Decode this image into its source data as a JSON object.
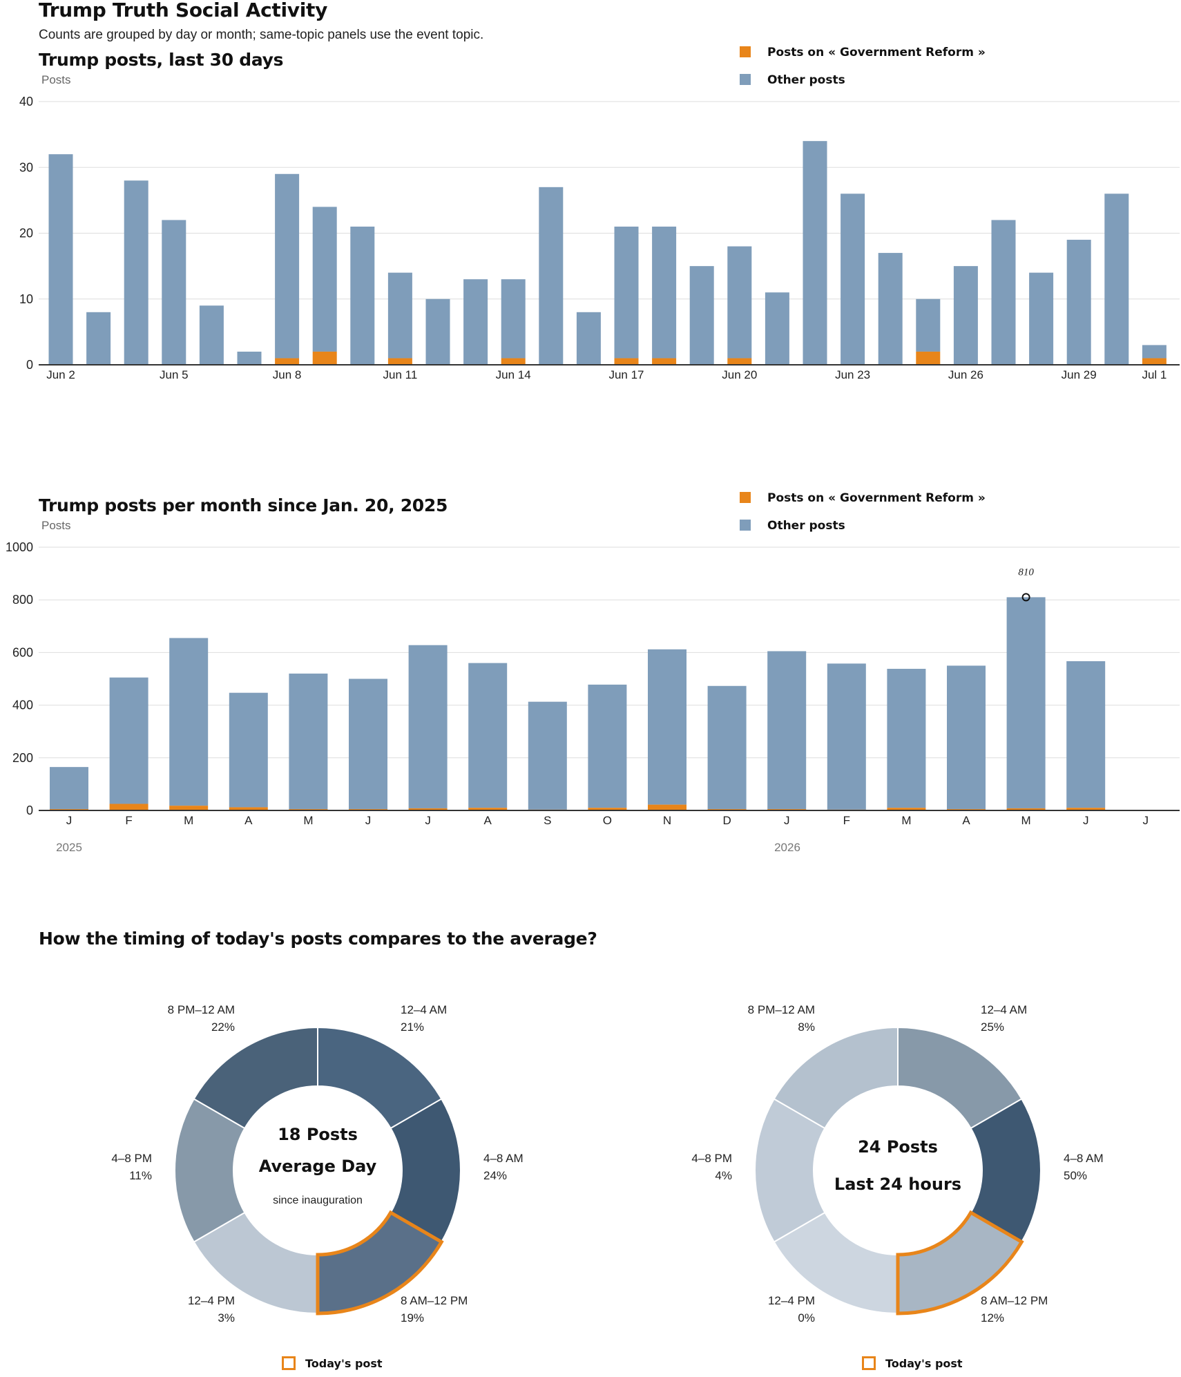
{
  "page": {
    "title": "Trump Truth Social Activity",
    "subtitle": "Counts are grouped by day or month; same-topic panels use the event topic."
  },
  "colors": {
    "topic": "#E8851A",
    "other": "#7F9DBA",
    "axis": "#333333",
    "grid": "#DDDDDD"
  },
  "legend": {
    "topic_label": "Posts on « Government Reform »",
    "other_label": "Other posts"
  },
  "chart_data": [
    {
      "type": "bar",
      "stacked": true,
      "title": "Trump posts, last 30 days",
      "ylabel": "Posts",
      "ylim": [
        0,
        40
      ],
      "yticks": [
        0,
        10,
        20,
        30,
        40
      ],
      "categories": [
        "Jun 2",
        "Jun 3",
        "Jun 4",
        "Jun 5",
        "Jun 6",
        "Jun 7",
        "Jun 8",
        "Jun 9",
        "Jun 10",
        "Jun 11",
        "Jun 12",
        "Jun 13",
        "Jun 14",
        "Jun 15",
        "Jun 16",
        "Jun 17",
        "Jun 18",
        "Jun 19",
        "Jun 20",
        "Jun 21",
        "Jun 22",
        "Jun 23",
        "Jun 24",
        "Jun 25",
        "Jun 26",
        "Jun 27",
        "Jun 28",
        "Jun 29",
        "Jun 30",
        "Jul 1"
      ],
      "tick_labels": [
        "Jun 2",
        "Jun 5",
        "Jun 8",
        "Jun 11",
        "Jun 14",
        "Jun 17",
        "Jun 20",
        "Jun 23",
        "Jun 26",
        "Jun 29",
        "Jul 1"
      ],
      "series": [
        {
          "name": "Posts on « Government Reform »",
          "values": [
            0,
            0,
            0,
            0,
            0,
            0,
            1,
            2,
            0,
            1,
            0,
            0,
            1,
            0,
            0,
            1,
            1,
            0,
            1,
            0,
            0,
            0,
            0,
            2,
            0,
            0,
            0,
            0,
            0,
            1
          ]
        },
        {
          "name": "Other posts",
          "values": [
            32,
            8,
            28,
            22,
            9,
            2,
            28,
            22,
            21,
            13,
            10,
            13,
            12,
            27,
            8,
            20,
            20,
            15,
            17,
            11,
            34,
            26,
            17,
            8,
            15,
            22,
            14,
            19,
            26,
            2
          ]
        }
      ],
      "grid": true,
      "legend_position": "top-right"
    },
    {
      "type": "bar",
      "stacked": true,
      "title": "Trump posts per month since Jan. 20, 2025",
      "ylabel": "Posts",
      "ylim": [
        0,
        1000
      ],
      "yticks": [
        0,
        200,
        400,
        600,
        800,
        1000
      ],
      "categories": [
        "J",
        "F",
        "M",
        "A",
        "M",
        "J",
        "J",
        "A",
        "S",
        "O",
        "N",
        "D",
        "J",
        "F",
        "M",
        "A",
        "M",
        "J",
        "J"
      ],
      "years": [
        "2025",
        "2026"
      ],
      "series": [
        {
          "name": "Posts on « Government Reform »",
          "values": [
            5,
            25,
            18,
            12,
            5,
            5,
            8,
            10,
            3,
            10,
            22,
            5,
            5,
            3,
            10,
            5,
            8,
            10,
            0
          ]
        },
        {
          "name": "Other posts",
          "values": [
            160,
            480,
            637,
            435,
            515,
            495,
            620,
            550,
            410,
            468,
            590,
            468,
            600,
            555,
            528,
            545,
            802,
            557,
            0
          ]
        }
      ],
      "annotation": {
        "label": "810",
        "category_index": 16,
        "value": 810
      },
      "grid": true,
      "legend_position": "top-right"
    },
    {
      "type": "pie",
      "donut": true,
      "center_title_1": "18 Posts",
      "center_title_2": "Average Day",
      "center_note": "since inauguration",
      "slices": [
        {
          "label": "12–4 AM",
          "value": 21,
          "display": "21%",
          "color": "#4A6580"
        },
        {
          "label": "4–8 AM",
          "value": 24,
          "display": "24%",
          "color": "#3E5872"
        },
        {
          "label": "8 AM–12 PM",
          "value": 19,
          "display": "19%",
          "color": "#5A7089",
          "highlight": true
        },
        {
          "label": "12–4 PM",
          "value": 3,
          "display": "3%",
          "color": "#BCC7D3"
        },
        {
          "label": "4–8 PM",
          "value": 11,
          "display": "11%",
          "color": "#8799A9"
        },
        {
          "label": "8 PM–12 AM",
          "value": 22,
          "display": "22%",
          "color": "#4A6279"
        }
      ],
      "highlight_color": "#E8851A",
      "legend_label": "Today's post"
    },
    {
      "type": "pie",
      "donut": true,
      "center_title_1": "24 Posts",
      "center_title_2": "Last 24 hours",
      "center_note": "",
      "slices": [
        {
          "label": "12–4 AM",
          "value": 25,
          "display": "25%",
          "color": "#8799A9"
        },
        {
          "label": "4–8 AM",
          "value": 50,
          "display": "50%",
          "color": "#3E5872"
        },
        {
          "label": "8 AM–12 PM",
          "value": 12,
          "display": "12%",
          "color": "#A8B6C4",
          "highlight": true
        },
        {
          "label": "12–4 PM",
          "value": 0,
          "display": "0%",
          "color": "#CDD6E0"
        },
        {
          "label": "4–8 PM",
          "value": 4,
          "display": "4%",
          "color": "#C0CBD7"
        },
        {
          "label": "8 PM–12 AM",
          "value": 8,
          "display": "8%",
          "color": "#B4C1CE"
        }
      ],
      "highlight_color": "#E8851A",
      "legend_label": "Today's post"
    }
  ],
  "section3": {
    "title": "How the timing of today's posts compares to the average?"
  }
}
